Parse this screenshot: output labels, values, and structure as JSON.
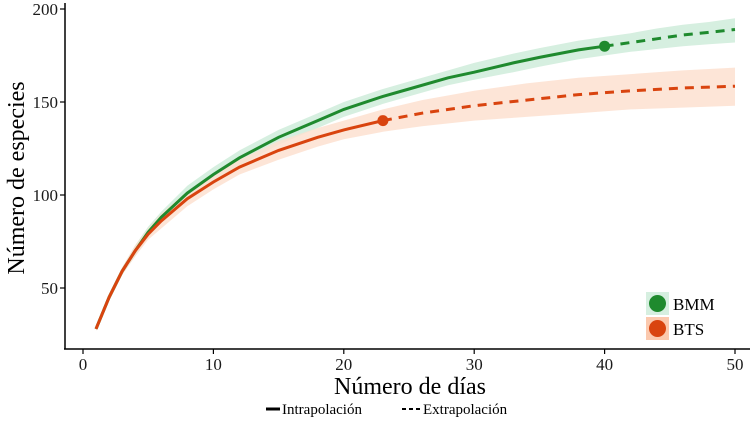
{
  "chart_data": {
    "type": "line",
    "title": "",
    "xlabel": "Número de días",
    "ylabel": "Número de especies",
    "xlim": [
      0,
      50
    ],
    "ylim": [
      20,
      200
    ],
    "x_ticks": [
      0,
      10,
      20,
      30,
      40,
      50
    ],
    "y_ticks": [
      50,
      100,
      150,
      200
    ],
    "grid": false,
    "legend_position": "bottom-right inside; line-type legend below x-axis",
    "series": [
      {
        "name": "BMM",
        "color": "#1f8a2e",
        "band_color": "#d6efe0",
        "observed_point": {
          "x": 40,
          "y": 180
        },
        "interpolation": {
          "x": [
            1,
            2,
            3,
            4,
            5,
            6,
            8,
            10,
            12,
            15,
            18,
            20,
            23,
            25,
            28,
            30,
            33,
            35,
            38,
            40
          ],
          "y": [
            28,
            45,
            59,
            70,
            80,
            88,
            101,
            111,
            120,
            131,
            140,
            146,
            153,
            157,
            163,
            166,
            171,
            174,
            178,
            180
          ]
        },
        "extrapolation": {
          "x": [
            40,
            42,
            44,
            46,
            48,
            50
          ],
          "y": [
            180,
            182,
            184,
            186,
            187.5,
            189
          ]
        },
        "band_upper": [
          29,
          47,
          61,
          73,
          83,
          91,
          105,
          115,
          124,
          135,
          144,
          150,
          157,
          161,
          167,
          171,
          176,
          179,
          183,
          185,
          187,
          189.5,
          191.5,
          193,
          195
        ],
        "band_lower": [
          27,
          43,
          57,
          67,
          77,
          85,
          97,
          107,
          116,
          127,
          136,
          142,
          149,
          153,
          159,
          162,
          166,
          169,
          173,
          175,
          177,
          178.5,
          180,
          181,
          182
        ]
      },
      {
        "name": "BTS",
        "color": "#d9440f",
        "band_color": "#fde0d0",
        "observed_point": {
          "x": 23,
          "y": 140
        },
        "interpolation": {
          "x": [
            1,
            2,
            3,
            4,
            5,
            6,
            8,
            10,
            12,
            15,
            18,
            20,
            23
          ],
          "y": [
            28,
            45,
            59,
            70,
            79,
            86,
            98,
            107,
            115,
            124,
            131,
            135,
            140
          ]
        },
        "extrapolation": {
          "x": [
            23,
            26,
            30,
            34,
            38,
            42,
            46,
            50
          ],
          "y": [
            140,
            144,
            148,
            151,
            154,
            156,
            157.5,
            158.5
          ]
        },
        "band_upper": [
          29,
          47,
          61,
          73,
          82,
          90,
          102,
          111,
          119,
          129,
          136,
          140,
          146,
          151,
          156,
          160,
          163,
          165,
          167,
          168.5
        ],
        "band_lower": [
          27,
          43,
          57,
          67,
          76,
          82,
          94,
          103,
          111,
          119,
          126,
          130,
          134,
          137,
          140,
          142,
          144,
          146,
          147,
          148
        ]
      }
    ],
    "legend": [
      {
        "label": "BMM",
        "color": "#1f8a2e"
      },
      {
        "label": "BTS",
        "color": "#d9440f"
      }
    ],
    "line_type_legend": [
      {
        "label": "Intrapolación",
        "style": "solid"
      },
      {
        "label": "Extrapolación",
        "style": "dashed"
      }
    ]
  }
}
